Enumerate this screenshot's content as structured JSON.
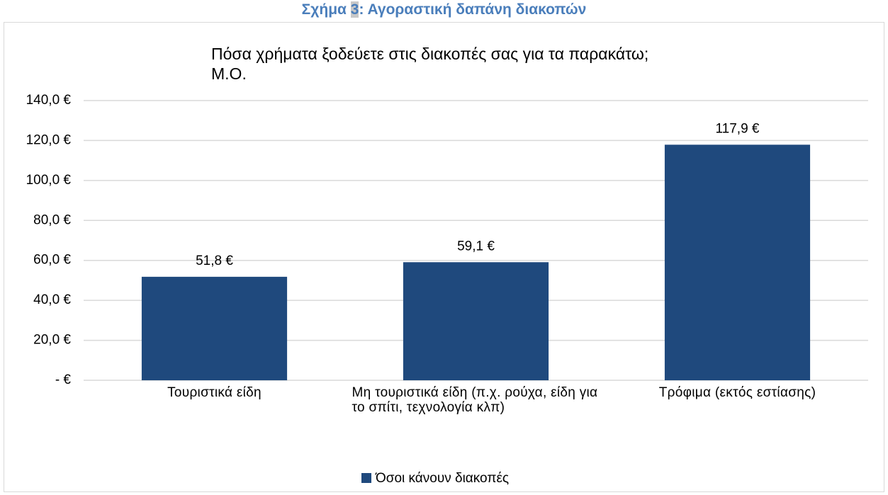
{
  "caption": {
    "prefix": "Σχήμα",
    "number": "3",
    "text": ": Αγοραστική δαπάνη διακοπών"
  },
  "chart_data": {
    "type": "bar",
    "title": "Πόσα χρήματα ξοδεύετε στις διακοπές σας για τα παρακάτω;",
    "subtitle": "Μ.Ο.",
    "categories": [
      "Τουριστικά είδη",
      "Μη τουριστικά είδη (π.χ. ρούχα, είδη για το σπίτι, τεχνολογία κλπ)",
      "Τρόφιμα (εκτός εστίασης)"
    ],
    "series": [
      {
        "name": "Όσοι κάνουν διακοπές",
        "color": "#1f497d",
        "values": [
          51.8,
          59.1,
          117.9
        ],
        "value_labels": [
          "51,8 €",
          "59,1 €",
          "117,9 €"
        ]
      }
    ],
    "ylim": [
      0,
      140
    ],
    "yticks": [
      {
        "value": 0,
        "label": "- €"
      },
      {
        "value": 20,
        "label": "20,0 €"
      },
      {
        "value": 40,
        "label": "40,0 €"
      },
      {
        "value": 60,
        "label": "60,0 €"
      },
      {
        "value": 80,
        "label": "80,0 €"
      },
      {
        "value": 100,
        "label": "100,0 €"
      },
      {
        "value": 120,
        "label": "120,0 €"
      },
      {
        "value": 140,
        "label": "140,0 €"
      }
    ],
    "grid": true,
    "legend": "bottom"
  }
}
